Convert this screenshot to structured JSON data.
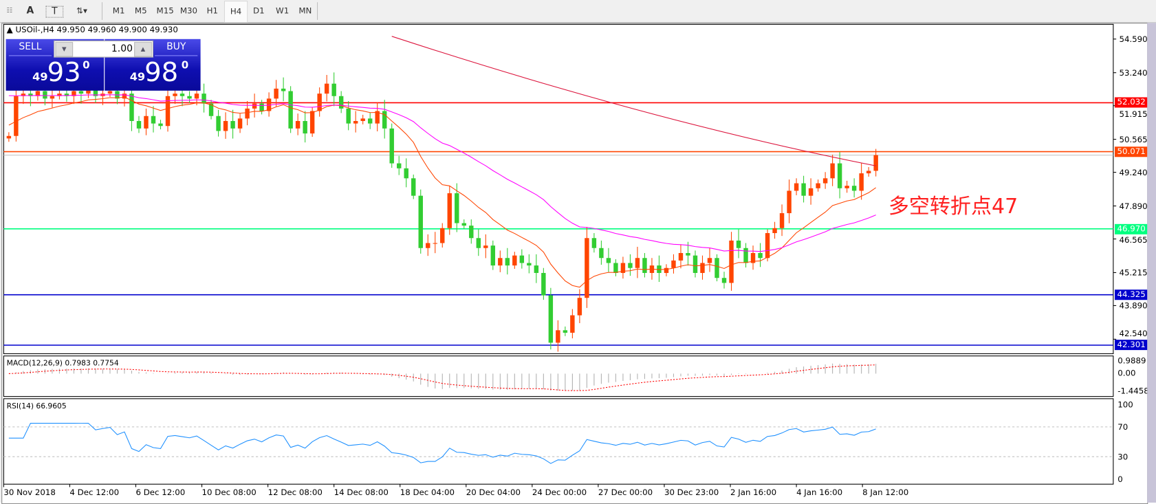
{
  "toolbar": {
    "tools": [
      {
        "icon": "fibo-grid-icon"
      },
      {
        "label": "A",
        "icon": "text-label-icon"
      },
      {
        "label": "T",
        "icon": "text-box-icon"
      },
      {
        "icon": "arrows-dropdown-icon"
      }
    ],
    "timeframes": [
      "M1",
      "M5",
      "M15",
      "M30",
      "H1",
      "H4",
      "D1",
      "W1",
      "MN"
    ],
    "active_timeframe": "H4"
  },
  "chart": {
    "symbol_line": "USOil-,H4  49.950 49.960 49.900 49.930",
    "annotation": "多空转折点47",
    "price_ticks": [
      "54.590",
      "53.240",
      "51.915",
      "50.565",
      "49.240",
      "47.890",
      "46.565",
      "45.215",
      "43.890",
      "42.540"
    ],
    "price_tick_values": [
      54.59,
      53.24,
      51.915,
      50.565,
      49.24,
      47.89,
      46.565,
      45.215,
      43.89,
      42.54
    ],
    "levels": [
      {
        "label": "52.032",
        "value": 52.032,
        "color": "#ff0000"
      },
      {
        "label": "50.071",
        "value": 50.071,
        "color": "#ff4500"
      },
      {
        "label": "46.970",
        "value": 46.97,
        "color": "#00ff7f"
      },
      {
        "label": "44.325",
        "value": 44.325,
        "color": "#0000cd"
      },
      {
        "label": "42.301",
        "value": 42.301,
        "color": "#0000cd"
      }
    ],
    "bid": 49.93,
    "time_labels": [
      "30 Nov 2018",
      "4 Dec 12:00",
      "6 Dec 12:00",
      "10 Dec 08:00",
      "12 Dec 08:00",
      "14 Dec 08:00",
      "18 Dec 04:00",
      "20 Dec 04:00",
      "24 Dec 00:00",
      "27 Dec 00:00",
      "30 Dec 23:00",
      "2 Jan 16:00",
      "4 Jan 16:00",
      "8 Jan 12:00"
    ],
    "closes": [
      50.7,
      52.3,
      52.4,
      52.3,
      52.5,
      52.2,
      52.3,
      52.4,
      52.3,
      52.5,
      52.4,
      52.6,
      52.3,
      52.4,
      52.5,
      52.2,
      52.4,
      51.3,
      51.0,
      51.5,
      51.2,
      51.1,
      52.3,
      52.4,
      52.3,
      52.2,
      52.4,
      52.0,
      51.5,
      50.9,
      51.3,
      51.0,
      51.4,
      51.8,
      52.0,
      51.7,
      52.2,
      52.6,
      52.5,
      51.0,
      51.3,
      50.8,
      51.7,
      52.4,
      52.8,
      52.3,
      51.8,
      51.2,
      51.3,
      51.4,
      51.2,
      51.7,
      51.0,
      49.6,
      49.4,
      49.0,
      48.3,
      46.2,
      46.4,
      46.4,
      47.0,
      48.4,
      47.2,
      47.1,
      46.6,
      46.2,
      46.3,
      45.5,
      45.8,
      45.5,
      45.9,
      45.6,
      45.5,
      45.2,
      44.3,
      42.4,
      42.9,
      42.8,
      43.5,
      44.2,
      46.6,
      46.2,
      45.8,
      45.6,
      45.2,
      45.6,
      45.4,
      45.8,
      45.2,
      45.5,
      45.2,
      45.4,
      45.7,
      46.0,
      45.9,
      45.2,
      45.6,
      45.8,
      45.0,
      44.8,
      46.5,
      46.2,
      45.6,
      46.0,
      45.8,
      46.8,
      47.0,
      47.6,
      48.5,
      48.8,
      48.3,
      48.6,
      48.8,
      49.0,
      49.6,
      48.6,
      48.7,
      48.5,
      49.2,
      49.3,
      49.93
    ],
    "colors": {
      "bull": "#ff4500",
      "bear": "#32cd32",
      "ma_fast": "#ff4500",
      "ma_mid": "#ff00ff",
      "ma_slow": "#dc143c"
    },
    "ma_slow_range": [
      54.7,
      49.5
    ]
  },
  "trade": {
    "sell_label": "SELL",
    "buy_label": "BUY",
    "lot": "1.00",
    "sell_big": "93",
    "sell_small": "49",
    "sell_sup": "0",
    "buy_big": "98",
    "buy_small": "49",
    "buy_sup": "0"
  },
  "macd": {
    "label": "MACD(12,26,9) 0.7983 0.7754",
    "ticks": [
      "0.9889",
      "0.00",
      "-1.4458"
    ],
    "range": [
      -1.4458,
      0.9889
    ]
  },
  "rsi": {
    "label": "RSI(14) 66.9605",
    "ticks": [
      "100",
      "70",
      "30",
      "0"
    ],
    "levels": [
      70,
      30
    ]
  }
}
